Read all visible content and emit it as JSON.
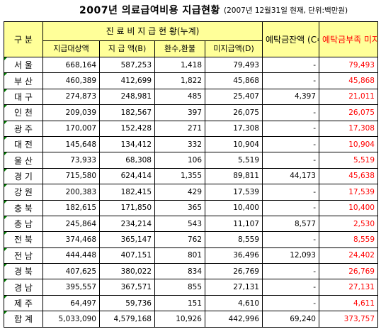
{
  "header": {
    "title": "2007년 의료급여비용 지급현황",
    "subtitle": "(2007년 12월31일 현재, 단위:백만원)"
  },
  "table": {
    "header_top": [
      "구 분",
      "진 료 비 지 급 현 황(누계)",
      "예탁금잔액 (C=A-B)",
      "예탁금부족 미지급액 (E=D-C)"
    ],
    "header_sub": [
      "지급대상액",
      "지 급 액(B)",
      "환수,환불",
      "미지급액(D)"
    ],
    "rows": [
      [
        "서 울",
        "668,164",
        "587,253",
        "1,418",
        "79,493",
        "-",
        "79,493"
      ],
      [
        "부 산",
        "460,389",
        "412,699",
        "1,822",
        "45,868",
        "-",
        "45,868"
      ],
      [
        "대 구",
        "274,873",
        "248,981",
        "485",
        "25,407",
        "4,397",
        "21,011"
      ],
      [
        "인 천",
        "209,039",
        "182,567",
        "397",
        "26,075",
        "-",
        "26,075"
      ],
      [
        "광 주",
        "170,007",
        "152,428",
        "271",
        "17,308",
        "-",
        "17,308"
      ],
      [
        "대 전",
        "145,648",
        "134,412",
        "332",
        "10,904",
        "-",
        "10,904"
      ],
      [
        "울 산",
        "73,933",
        "68,308",
        "106",
        "5,519",
        "-",
        "5,519"
      ],
      [
        "경 기",
        "715,580",
        "624,414",
        "1,355",
        "89,811",
        "44,173",
        "45,638"
      ],
      [
        "강 원",
        "200,383",
        "182,415",
        "429",
        "17,539",
        "-",
        "17,539"
      ],
      [
        "충 북",
        "182,615",
        "171,850",
        "365",
        "10,400",
        "-",
        "10,400"
      ],
      [
        "충 남",
        "245,864",
        "234,214",
        "543",
        "11,107",
        "8,577",
        "2,530"
      ],
      [
        "전 북",
        "374,468",
        "365,147",
        "762",
        "8,559",
        "-",
        "8,559"
      ],
      [
        "전 남",
        "444,448",
        "407,151",
        "801",
        "36,496",
        "12,093",
        "24,402"
      ],
      [
        "경 북",
        "407,625",
        "380,022",
        "834",
        "26,769",
        "-",
        "26,769"
      ],
      [
        "경 남",
        "395,557",
        "367,571",
        "855",
        "27,131",
        "-",
        "27,131"
      ],
      [
        "제 주",
        "64,497",
        "59,736",
        "151",
        "4,610",
        "-",
        "4,611"
      ],
      [
        "합 계",
        "5,033,090",
        "4,579,168",
        "10,926",
        "442,996",
        "69,240",
        "373,757"
      ]
    ]
  }
}
